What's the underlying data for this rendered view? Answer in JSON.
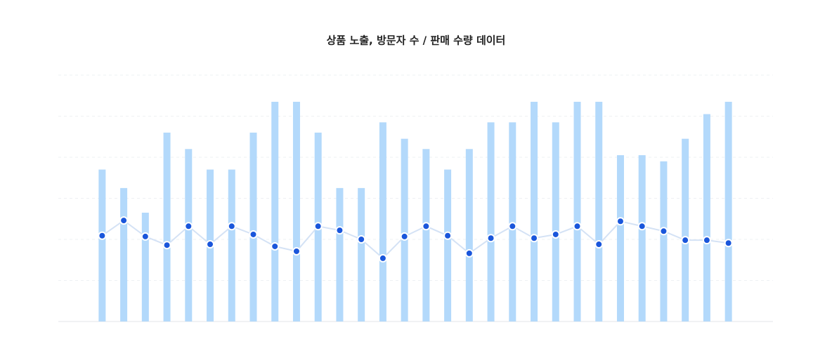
{
  "chart_data": {
    "type": "bar_line",
    "title": "상품 노출, 방문자 수 / 판매 수량 데이터",
    "categories": [
      null,
      null,
      null,
      null,
      null,
      null,
      null,
      null,
      null,
      null,
      null,
      null,
      null,
      null,
      null,
      null,
      null,
      null,
      null,
      null,
      null,
      null,
      null,
      null,
      null,
      null,
      null,
      null,
      null,
      null
    ],
    "series": [
      {
        "type": "bar",
        "color": "#b3d9fb",
        "values": [
          37,
          32.5,
          26.5,
          46,
          42,
          37,
          37,
          46,
          53.5,
          53.5,
          46,
          32.5,
          32.5,
          48.5,
          44.5,
          42,
          37,
          42,
          48.5,
          48.5,
          53.5,
          48.5,
          53.5,
          53.5,
          40.5,
          40.5,
          39,
          44.5,
          50.5,
          53.5
        ]
      },
      {
        "type": "line",
        "color": "#1a56db",
        "line_color": "#d4e2f5",
        "values": [
          20.9,
          24.6,
          20.7,
          18.6,
          23.2,
          18.8,
          23.2,
          21.2,
          18.3,
          17.1,
          23.2,
          22.2,
          20,
          15.4,
          20.7,
          23.2,
          20.9,
          16.6,
          20.3,
          23.2,
          20.3,
          21.2,
          23.2,
          18.8,
          24.4,
          23.2,
          22,
          19.8,
          19.8,
          19.1
        ]
      }
    ],
    "ylim": [
      0,
      60
    ],
    "yticks": [
      0,
      10,
      20,
      30,
      40,
      50,
      60
    ],
    "grid": true
  }
}
